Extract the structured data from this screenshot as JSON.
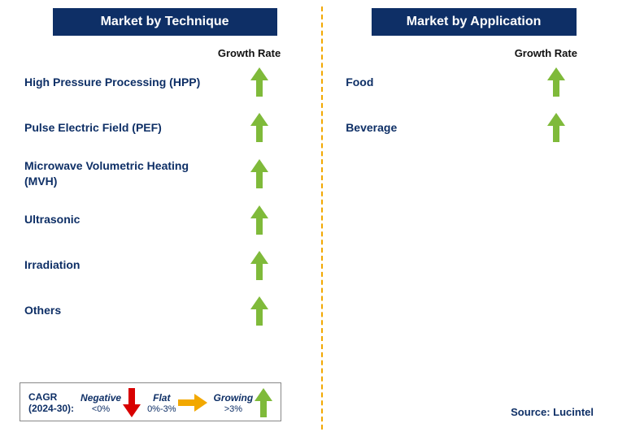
{
  "colors": {
    "header_bg": "#0e2f66",
    "header_text": "#ffffff",
    "label_text": "#0e2f66",
    "growth_label": "#111111",
    "divider": "#f2a800",
    "arrow_up": "#7fba3a",
    "arrow_down": "#d80000",
    "arrow_flat": "#f2a800",
    "legend_border": "#888888",
    "legend_title": "#0e2f66",
    "source": "#0e2f66"
  },
  "left": {
    "title": "Market by Technique",
    "growth_label": "Growth Rate",
    "items": [
      {
        "label": "High Pressure Processing (HPP)",
        "trend": "up"
      },
      {
        "label": "Pulse Electric Field (PEF)",
        "trend": "up"
      },
      {
        "label": "Microwave Volumetric Heating (MVH)",
        "trend": "up"
      },
      {
        "label": "Ultrasonic",
        "trend": "up"
      },
      {
        "label": "Irradiation",
        "trend": "up"
      },
      {
        "label": "Others",
        "trend": "up"
      }
    ]
  },
  "right": {
    "title": "Market by Application",
    "growth_label": "Growth Rate",
    "items": [
      {
        "label": "Food",
        "trend": "up"
      },
      {
        "label": "Beverage",
        "trend": "up"
      }
    ]
  },
  "legend": {
    "title_line1": "CAGR",
    "title_line2": "(2024-30):",
    "neg_label": "Negative",
    "neg_sub": "<0%",
    "flat_label": "Flat",
    "flat_sub": "0%-3%",
    "grow_label": "Growing",
    "grow_sub": ">3%"
  },
  "source": "Source: Lucintel"
}
